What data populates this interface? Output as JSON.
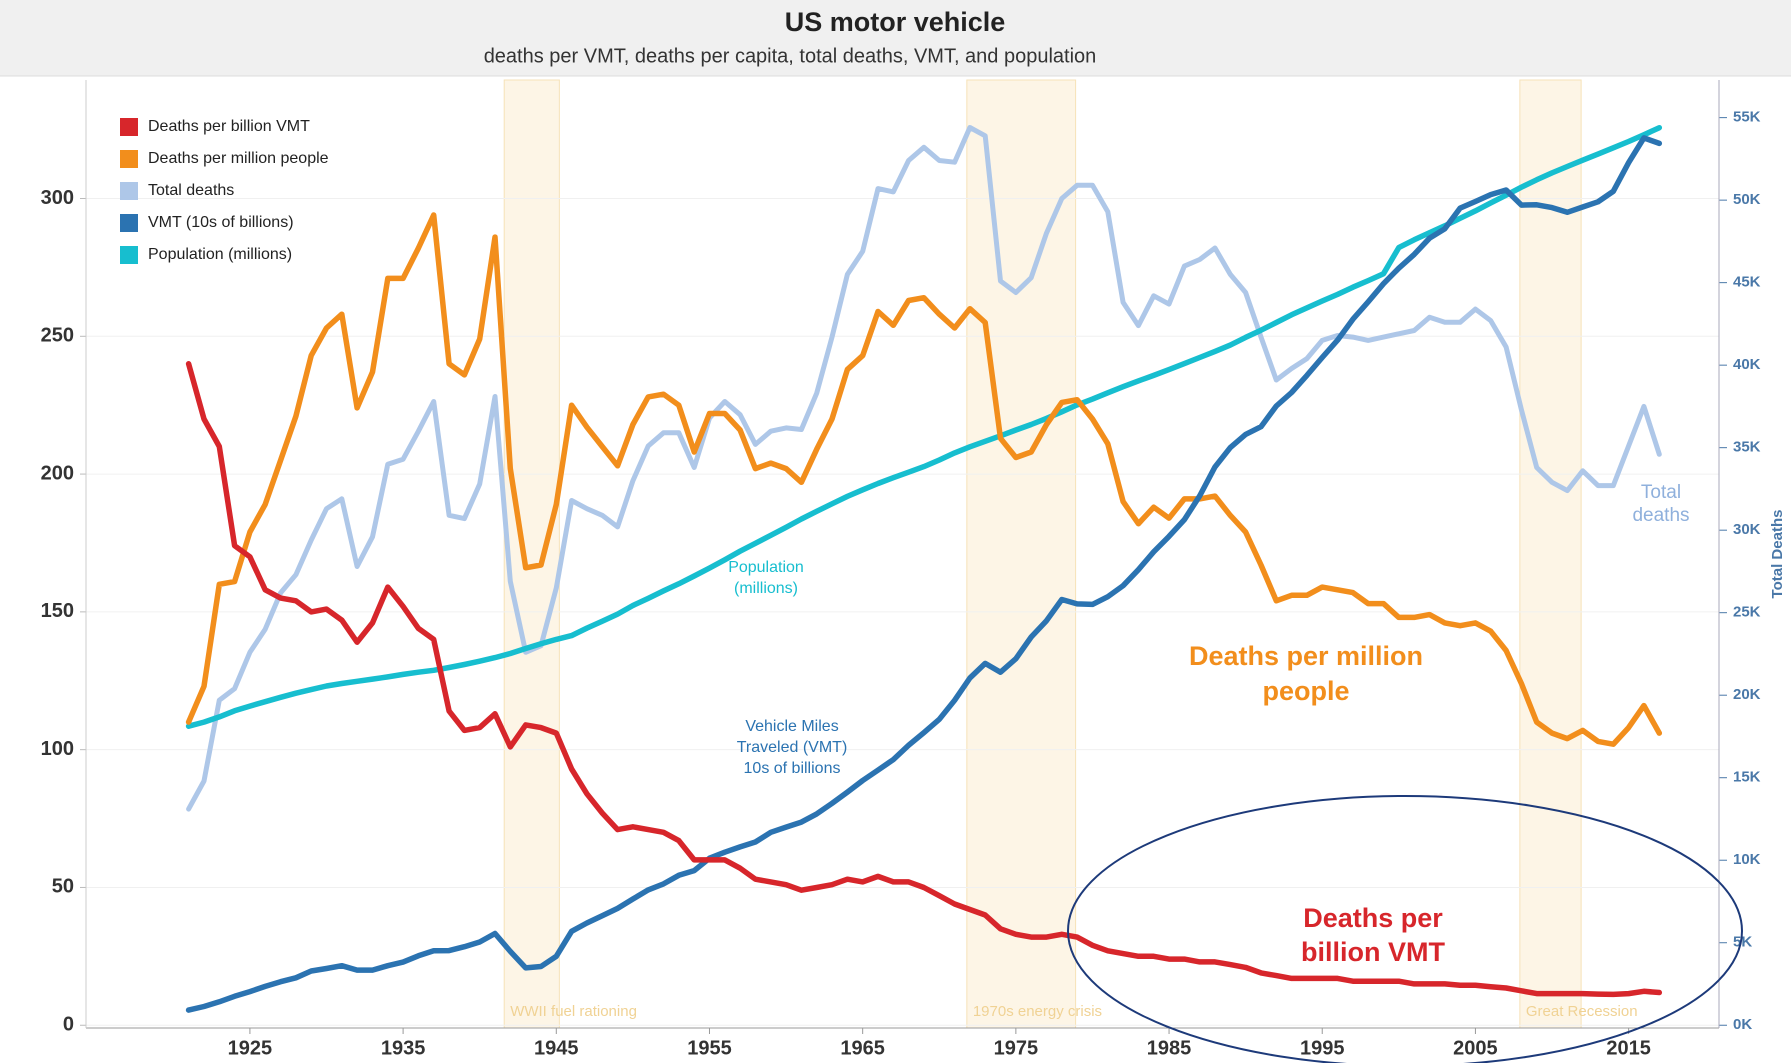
{
  "chart_data": {
    "type": "line",
    "title": "US motor vehicle",
    "subtitle": "deaths per VMT, deaths per capita, total deaths, VMT, and population",
    "y2label": "Total Deaths",
    "x": [
      1921,
      1922,
      1923,
      1924,
      1925,
      1926,
      1927,
      1928,
      1929,
      1930,
      1931,
      1932,
      1933,
      1934,
      1935,
      1936,
      1937,
      1938,
      1939,
      1940,
      1941,
      1942,
      1943,
      1944,
      1945,
      1946,
      1947,
      1948,
      1949,
      1950,
      1951,
      1952,
      1953,
      1954,
      1955,
      1956,
      1957,
      1958,
      1959,
      1960,
      1961,
      1962,
      1963,
      1964,
      1965,
      1966,
      1967,
      1968,
      1969,
      1970,
      1971,
      1972,
      1973,
      1974,
      1975,
      1976,
      1977,
      1978,
      1979,
      1980,
      1981,
      1982,
      1983,
      1984,
      1985,
      1986,
      1987,
      1988,
      1989,
      1990,
      1991,
      1992,
      1993,
      1994,
      1995,
      1996,
      1997,
      1998,
      1999,
      2000,
      2001,
      2002,
      2003,
      2004,
      2005,
      2006,
      2007,
      2008,
      2009,
      2010,
      2011,
      2012,
      2013,
      2014,
      2015,
      2016,
      2017
    ],
    "series": [
      {
        "name": "Deaths per billion VMT",
        "color": "#d7262b",
        "values": [
          240,
          220,
          210,
          174,
          170,
          158,
          155,
          154,
          150,
          151,
          147,
          139,
          146,
          159,
          152,
          144,
          140,
          114,
          107,
          108,
          113,
          101,
          109,
          108,
          106,
          93,
          84,
          77,
          71,
          72,
          71,
          70,
          67,
          60,
          60,
          60,
          57,
          53,
          52,
          51,
          49,
          50,
          51,
          53,
          52,
          54,
          52,
          52,
          50,
          47,
          44,
          42,
          40,
          35,
          33,
          32,
          32,
          33,
          32,
          29,
          27,
          26,
          25,
          25,
          24,
          24,
          23,
          23,
          22,
          21,
          19,
          18,
          17,
          17,
          17,
          17,
          16,
          16,
          16,
          16,
          15,
          15,
          15,
          14.5,
          14.5,
          14,
          13.5,
          12.5,
          11.5,
          11.5,
          11.5,
          11.5,
          11.3,
          11.2,
          11.5,
          12.3,
          11.9
        ]
      },
      {
        "name": "Deaths per million people",
        "color": "#f28e1c",
        "values": [
          110,
          123,
          160,
          161,
          179,
          189,
          205,
          221,
          243,
          253,
          258,
          224,
          237,
          271,
          271,
          282,
          294,
          240,
          236,
          249,
          286,
          202,
          166,
          167,
          189,
          225,
          217,
          210,
          203,
          218,
          228,
          229,
          225,
          208,
          222,
          222,
          216,
          202,
          204,
          202,
          197,
          209,
          220,
          238,
          243,
          259,
          254,
          263,
          264,
          258,
          253,
          260,
          255,
          213,
          206,
          208,
          218,
          226,
          227,
          220,
          211,
          190,
          182,
          188,
          184,
          191,
          191,
          192,
          185,
          179,
          167,
          154,
          156,
          156,
          159,
          158,
          157,
          153,
          153,
          148,
          148,
          149,
          146,
          145,
          146,
          143,
          136,
          124,
          110,
          106,
          104,
          107,
          103,
          102,
          108,
          116,
          106
        ]
      },
      {
        "name": "Total deaths",
        "color": "#aec7e8",
        "axis": "y2",
        "values": [
          13100,
          14800,
          19700,
          20400,
          22600,
          24000,
          26200,
          27300,
          29400,
          31300,
          31900,
          27800,
          29600,
          34000,
          34300,
          36000,
          37800,
          30900,
          30700,
          32800,
          38100,
          26900,
          22600,
          23000,
          26500,
          31800,
          31300,
          30900,
          30200,
          33000,
          35100,
          35900,
          35900,
          33800,
          36800,
          37800,
          37000,
          35200,
          36000,
          36200,
          36100,
          38300,
          41700,
          45500,
          46900,
          50700,
          50500,
          52400,
          53200,
          52400,
          52300,
          54400,
          53900,
          45100,
          44400,
          45300,
          48000,
          50100,
          50900,
          50900,
          49300,
          43800,
          42400,
          44200,
          43700,
          46000,
          46400,
          47100,
          45500,
          44400,
          41700,
          39100,
          39800,
          40400,
          41500,
          41800,
          41700,
          41500,
          41700,
          41900,
          42100,
          42900,
          42600,
          42600,
          43400,
          42700,
          41100,
          37300,
          33800,
          32900,
          32400,
          33600,
          32700,
          32700,
          35100,
          37500,
          34600
        ]
      },
      {
        "name": "VMT (10s of billions)",
        "color": "#2b73b1",
        "values": [
          5.5,
          6.8,
          8.5,
          10.5,
          12.2,
          14.1,
          15.8,
          17.2,
          19.7,
          20.6,
          21.6,
          20.0,
          20.0,
          21.6,
          22.9,
          25.2,
          27.0,
          27.1,
          28.5,
          30.2,
          33.3,
          26.8,
          20.8,
          21.3,
          25.0,
          34.1,
          37.1,
          39.7,
          42.4,
          45.8,
          49.1,
          51.3,
          54.4,
          56.1,
          60.6,
          62.8,
          64.7,
          66.5,
          70.0,
          71.9,
          73.7,
          76.7,
          80.5,
          84.6,
          88.8,
          92.6,
          96.4,
          101.6,
          106.2,
          111.0,
          117.9,
          126.0,
          131.3,
          128.1,
          133.0,
          140.9,
          146.8,
          154.5,
          152.9,
          152.7,
          155.5,
          159.5,
          165.3,
          171.8,
          177.4,
          183.5,
          192.1,
          202.6,
          209.6,
          214.4,
          217.2,
          224.7,
          229.6,
          235.8,
          242.3,
          248.6,
          256.2,
          262.5,
          269.1,
          274.7,
          279.7,
          285.6,
          289.0,
          296.5,
          298.9,
          301.4,
          303.1,
          297.6,
          297.7,
          296.7,
          295.0,
          296.9,
          298.8,
          302.6,
          313,
          322,
          320
        ]
      },
      {
        "name": "Population (millions)",
        "color": "#17becf",
        "values": [
          108.5,
          110.0,
          111.9,
          114.1,
          115.8,
          117.4,
          119.0,
          120.5,
          121.8,
          123.1,
          124.0,
          124.8,
          125.6,
          126.4,
          127.3,
          128.1,
          128.8,
          129.8,
          130.9,
          132.1,
          133.4,
          134.9,
          136.7,
          138.4,
          140.0,
          141.4,
          144.1,
          146.6,
          149.2,
          152.3,
          154.9,
          157.6,
          160.2,
          163.0,
          165.9,
          168.9,
          172.0,
          174.9,
          177.8,
          180.7,
          183.7,
          186.5,
          189.2,
          191.9,
          194.3,
          196.6,
          198.7,
          200.7,
          202.7,
          205.1,
          207.7,
          209.9,
          211.9,
          213.9,
          216.0,
          218.0,
          220.2,
          222.6,
          225.1,
          227.2,
          229.5,
          231.7,
          233.8,
          235.8,
          237.9,
          240.1,
          242.3,
          244.5,
          246.8,
          249.6,
          252.2,
          255.0,
          257.8,
          260.3,
          262.8,
          265.2,
          267.8,
          270.2,
          272.7,
          282.2,
          285.0,
          287.6,
          290.1,
          292.8,
          295.5,
          298.4,
          301.2,
          304.1,
          306.8,
          309.3,
          311.6,
          313.9,
          316.1,
          318.4,
          320.7,
          323.1,
          325.7
        ]
      }
    ],
    "xlim": [
      1914.3,
      2020.9
    ],
    "xticks": [
      1925,
      1935,
      1945,
      1955,
      1965,
      1975,
      1985,
      1995,
      2005,
      2015
    ],
    "ylim": [
      -1,
      343
    ],
    "yticks": [
      0,
      50,
      100,
      150,
      200,
      250,
      300
    ],
    "y2lim": [
      -167,
      57280
    ],
    "y2ticks": [
      {
        "value": 0,
        "label": "0K"
      },
      {
        "value": 5000,
        "label": "5K"
      },
      {
        "value": 10000,
        "label": "10K"
      },
      {
        "value": 15000,
        "label": "15K"
      },
      {
        "value": 20000,
        "label": "20K"
      },
      {
        "value": 25000,
        "label": "25K"
      },
      {
        "value": 30000,
        "label": "30K"
      },
      {
        "value": 35000,
        "label": "35K"
      },
      {
        "value": 40000,
        "label": "40K"
      },
      {
        "value": 45000,
        "label": "45K"
      },
      {
        "value": 50000,
        "label": "50K"
      },
      {
        "value": 55000,
        "label": "55K"
      }
    ],
    "grid": true,
    "legend": "top-left",
    "shaded_periods": [
      {
        "label": "WWII fuel rationing",
        "start": 1941.6,
        "end": 1945.2
      },
      {
        "label": "1970s energy crisis",
        "start": 1971.8,
        "end": 1978.9
      },
      {
        "label": "Great Recession",
        "start": 2007.9,
        "end": 2011.9
      }
    ],
    "annotations": [
      [
        "Population",
        "(millions)"
      ],
      [
        "Vehicle Miles",
        "Traveled (VMT)",
        "10s of billions"
      ],
      [
        "Deaths per million",
        "people"
      ],
      [
        "Deaths per",
        "billion VMT"
      ],
      [
        "Total",
        "deaths"
      ]
    ]
  }
}
